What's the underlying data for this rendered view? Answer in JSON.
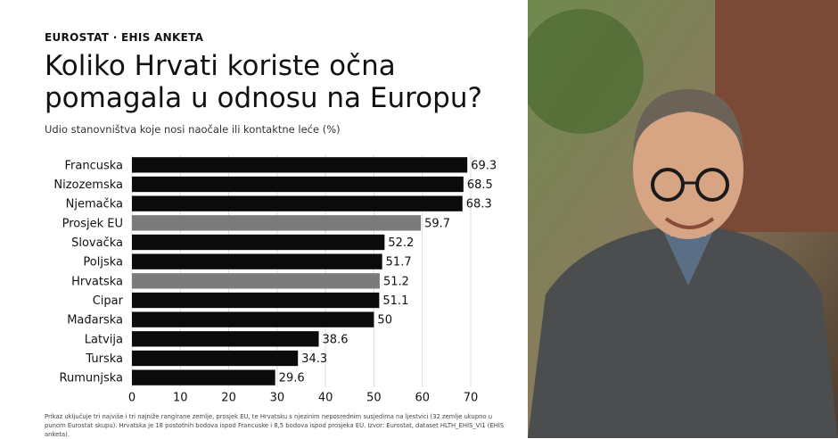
{
  "chart_data": {
    "type": "bar",
    "orientation": "horizontal",
    "kicker": "EUROSTAT · EHIS ANKETA",
    "title": "Koliko Hrvati koriste očna pomagala u odnosu na Europu?",
    "subtitle": "Udio stanovništva koje nosi naočale ili kontaktne leće (%)",
    "categories": [
      "Francuska",
      "Nizozemska",
      "Njemačka",
      "Prosjek EU",
      "Slovačka",
      "Poljska",
      "Hrvatska",
      "Cipar",
      "Mađarska",
      "Latvija",
      "Turska",
      "Rumunjska"
    ],
    "values": [
      69.3,
      68.5,
      68.3,
      59.7,
      52.2,
      51.7,
      51.2,
      51.1,
      50,
      38.6,
      34.3,
      29.6
    ],
    "colors": [
      "#0b0b0b",
      "#0b0b0b",
      "#0b0b0b",
      "#7b7b7b",
      "#0b0b0b",
      "#0b0b0b",
      "#7b7b7b",
      "#0b0b0b",
      "#0b0b0b",
      "#0b0b0b",
      "#0b0b0b",
      "#0b0b0b"
    ],
    "xlim": [
      0,
      70
    ],
    "xticks": [
      0,
      10,
      20,
      30,
      40,
      50,
      60,
      70
    ],
    "grid": true,
    "note": "Prikaz uključuje tri najviše i tri najniže rangirane zemlje, prosjek EU, te Hrvatsku s njezinim neposrednim susjedima na ljestvici (32 zemlje ukupno u punom Eurostat skupu). Hrvatska je 18 postotnih bodova ispod Francuske i 8,5 bodova ispod prosjeka EU. Izvor: Eurostat, dataset HLTH_EHIS_VI1 (EHIS anketa)."
  }
}
